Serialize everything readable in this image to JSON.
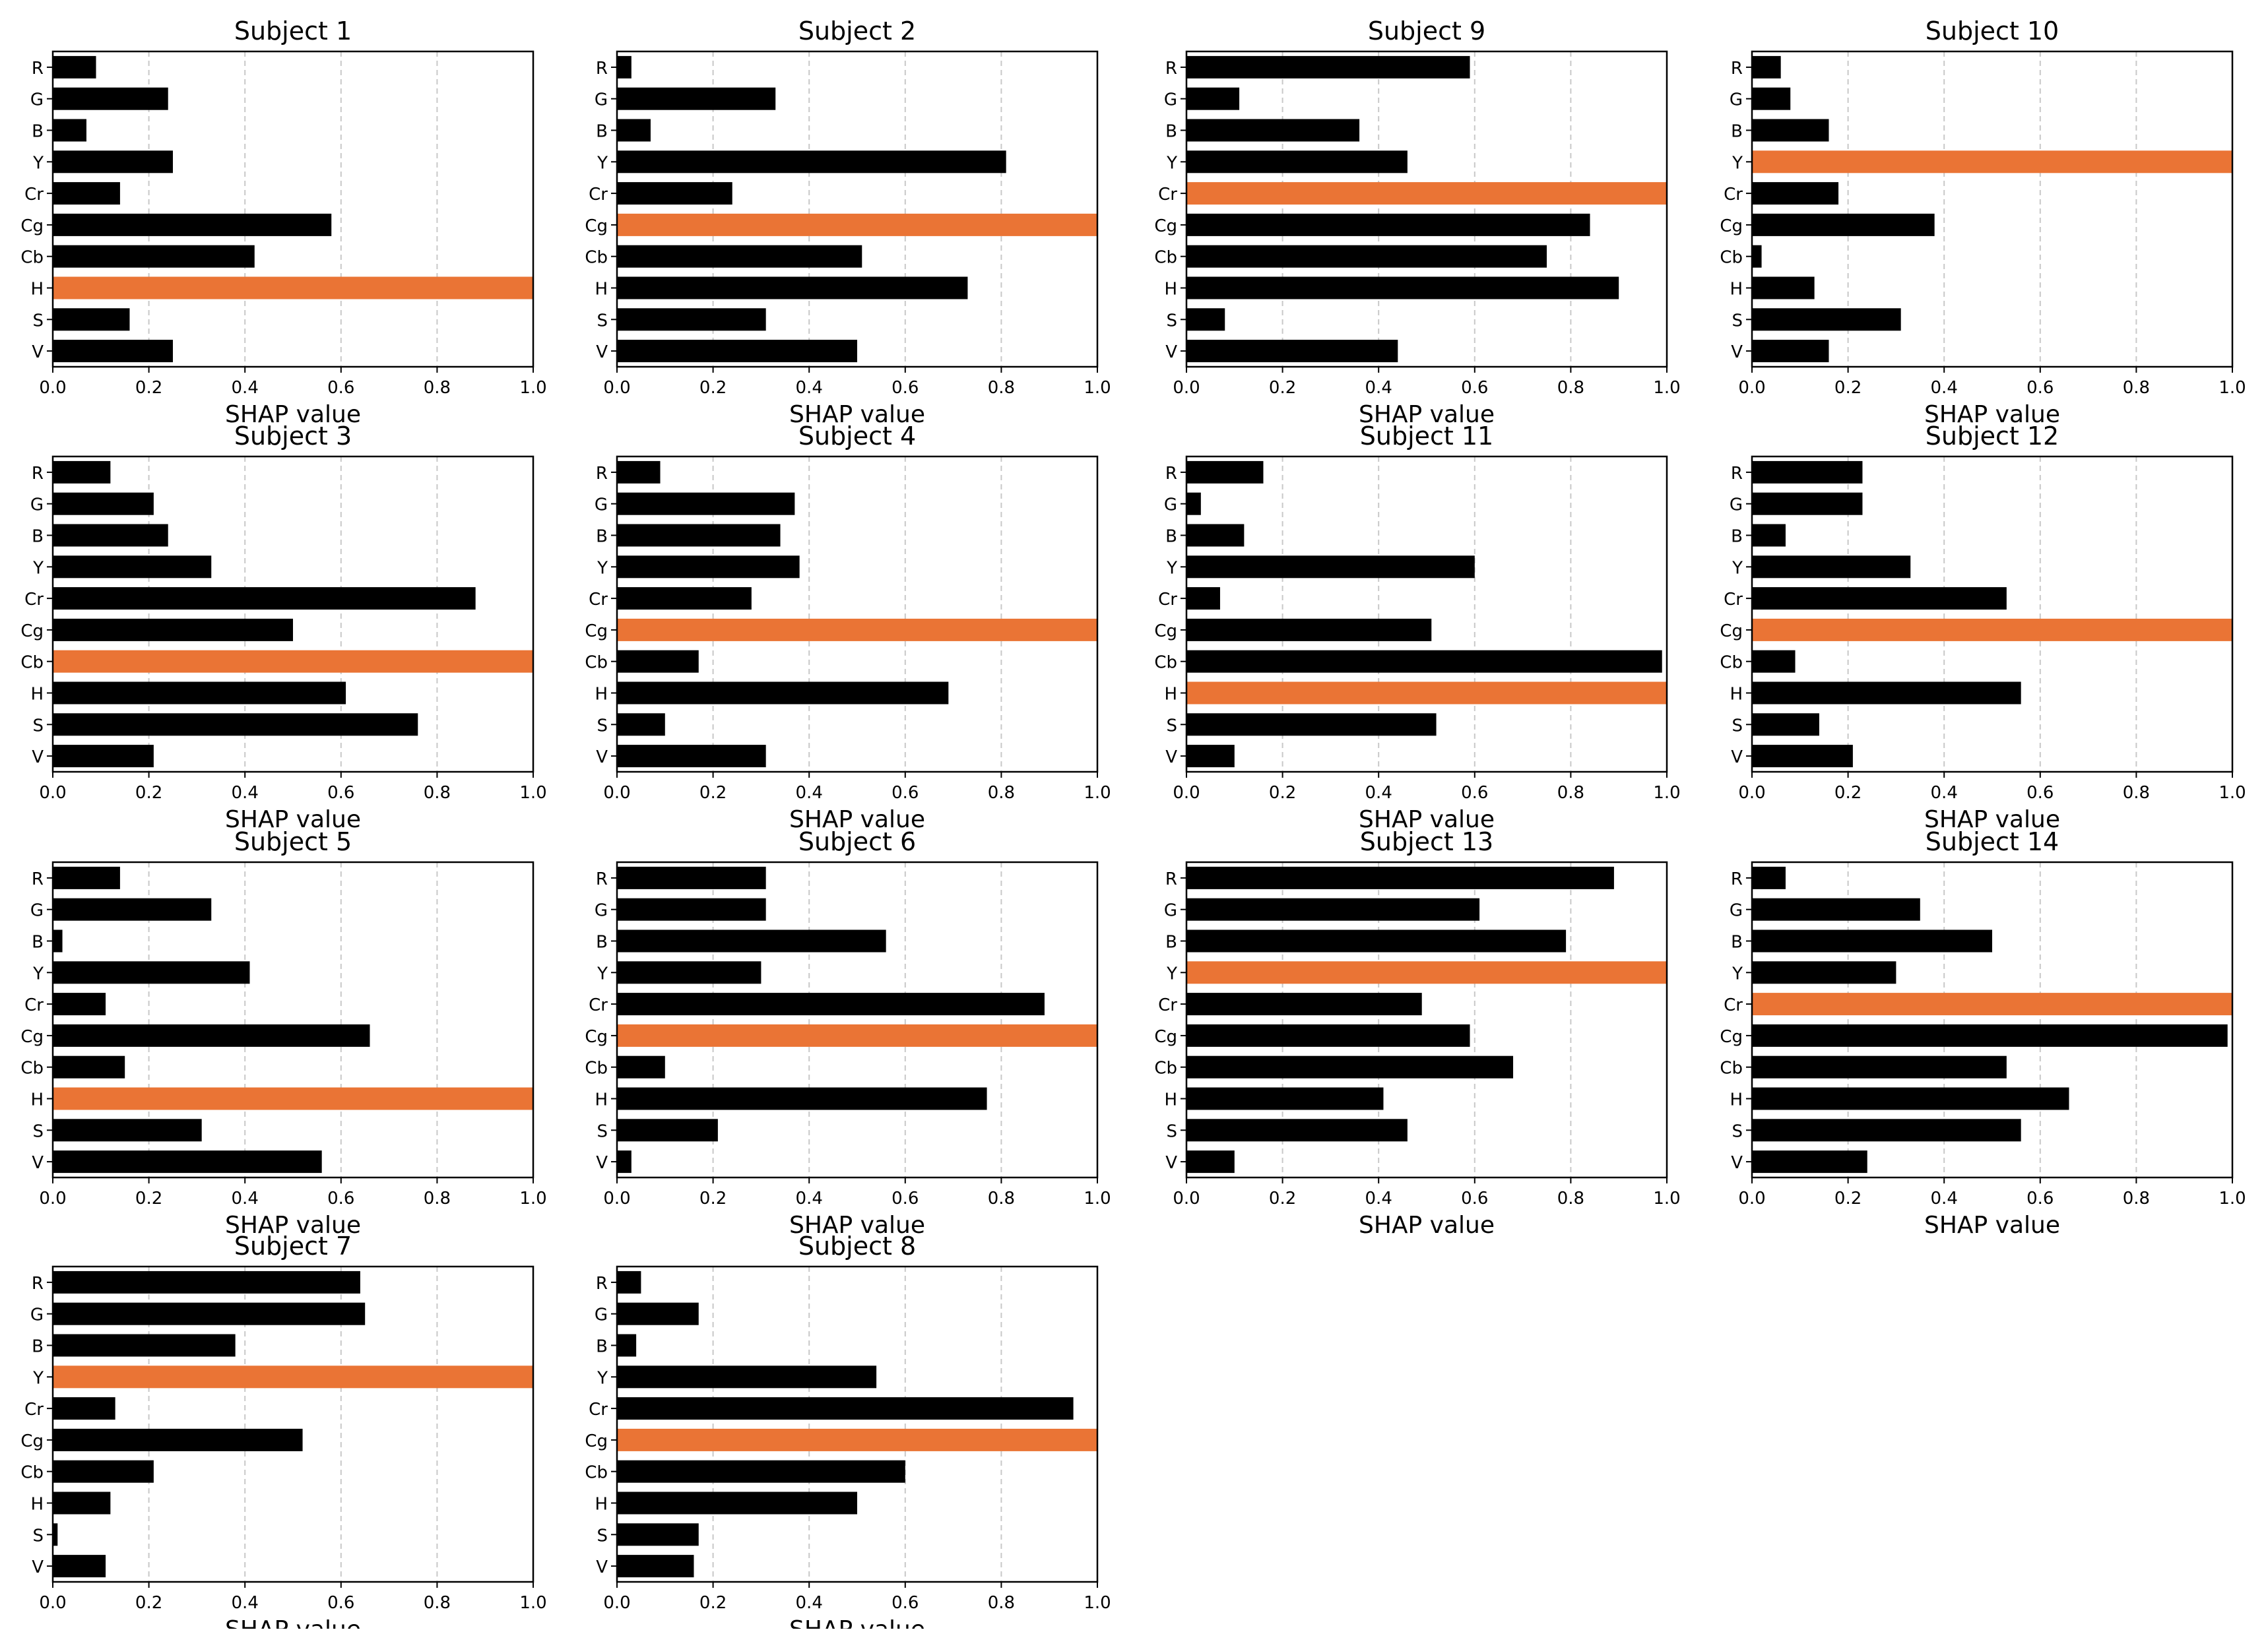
{
  "colors": {
    "bar": "#000000",
    "highlight": "#ea7435",
    "grid": "#c8c8c8",
    "frame": "#000000"
  },
  "chart_data": [
    {
      "type": "bar",
      "orientation": "horizontal",
      "title": "Subject 1",
      "xlabel": "SHAP value",
      "categories": [
        "R",
        "G",
        "B",
        "Y",
        "Cr",
        "Cg",
        "Cb",
        "H",
        "S",
        "V"
      ],
      "values": [
        0.09,
        0.24,
        0.07,
        0.25,
        0.14,
        0.58,
        0.42,
        1.0,
        0.16,
        0.25
      ],
      "highlight": "H",
      "xlim": [
        0,
        1.0
      ],
      "xticks": [
        "0.0",
        "0.2",
        "0.4",
        "0.6",
        "0.8",
        "1.0"
      ],
      "grid": true
    },
    {
      "type": "bar",
      "orientation": "horizontal",
      "title": "Subject 2",
      "xlabel": "SHAP value",
      "categories": [
        "R",
        "G",
        "B",
        "Y",
        "Cr",
        "Cg",
        "Cb",
        "H",
        "S",
        "V"
      ],
      "values": [
        0.03,
        0.33,
        0.07,
        0.81,
        0.24,
        1.0,
        0.51,
        0.73,
        0.31,
        0.5
      ],
      "highlight": "Cg",
      "xlim": [
        0,
        1.0
      ],
      "xticks": [
        "0.0",
        "0.2",
        "0.4",
        "0.6",
        "0.8",
        "1.0"
      ],
      "grid": true
    },
    {
      "type": "bar",
      "orientation": "horizontal",
      "title": "Subject 9",
      "xlabel": "SHAP value",
      "categories": [
        "R",
        "G",
        "B",
        "Y",
        "Cr",
        "Cg",
        "Cb",
        "H",
        "S",
        "V"
      ],
      "values": [
        0.59,
        0.11,
        0.36,
        0.46,
        1.0,
        0.84,
        0.75,
        0.9,
        0.08,
        0.44
      ],
      "highlight": "Cr",
      "xlim": [
        0,
        1.0
      ],
      "xticks": [
        "0.0",
        "0.2",
        "0.4",
        "0.6",
        "0.8",
        "1.0"
      ],
      "grid": true
    },
    {
      "type": "bar",
      "orientation": "horizontal",
      "title": "Subject 10",
      "xlabel": "SHAP value",
      "categories": [
        "R",
        "G",
        "B",
        "Y",
        "Cr",
        "Cg",
        "Cb",
        "H",
        "S",
        "V"
      ],
      "values": [
        0.06,
        0.08,
        0.16,
        1.0,
        0.18,
        0.38,
        0.02,
        0.13,
        0.31,
        0.16
      ],
      "highlight": "Y",
      "xlim": [
        0,
        1.0
      ],
      "xticks": [
        "0.0",
        "0.2",
        "0.4",
        "0.6",
        "0.8",
        "1.0"
      ],
      "grid": true
    },
    {
      "type": "bar",
      "orientation": "horizontal",
      "title": "Subject 3",
      "xlabel": "SHAP value",
      "categories": [
        "R",
        "G",
        "B",
        "Y",
        "Cr",
        "Cg",
        "Cb",
        "H",
        "S",
        "V"
      ],
      "values": [
        0.12,
        0.21,
        0.24,
        0.33,
        0.88,
        0.5,
        1.0,
        0.61,
        0.76,
        0.21
      ],
      "highlight": "Cb",
      "xlim": [
        0,
        1.0
      ],
      "xticks": [
        "0.0",
        "0.2",
        "0.4",
        "0.6",
        "0.8",
        "1.0"
      ],
      "grid": true
    },
    {
      "type": "bar",
      "orientation": "horizontal",
      "title": "Subject 4",
      "xlabel": "SHAP value",
      "categories": [
        "R",
        "G",
        "B",
        "Y",
        "Cr",
        "Cg",
        "Cb",
        "H",
        "S",
        "V"
      ],
      "values": [
        0.09,
        0.37,
        0.34,
        0.38,
        0.28,
        1.0,
        0.17,
        0.69,
        0.1,
        0.31
      ],
      "highlight": "Cg",
      "xlim": [
        0,
        1.0
      ],
      "xticks": [
        "0.0",
        "0.2",
        "0.4",
        "0.6",
        "0.8",
        "1.0"
      ],
      "grid": true
    },
    {
      "type": "bar",
      "orientation": "horizontal",
      "title": "Subject 11",
      "xlabel": "SHAP value",
      "categories": [
        "R",
        "G",
        "B",
        "Y",
        "Cr",
        "Cg",
        "Cb",
        "H",
        "S",
        "V"
      ],
      "values": [
        0.16,
        0.03,
        0.12,
        0.6,
        0.07,
        0.51,
        0.99,
        1.0,
        0.52,
        0.1
      ],
      "highlight": "H",
      "xlim": [
        0,
        1.0
      ],
      "xticks": [
        "0.0",
        "0.2",
        "0.4",
        "0.6",
        "0.8",
        "1.0"
      ],
      "grid": true
    },
    {
      "type": "bar",
      "orientation": "horizontal",
      "title": "Subject 12",
      "xlabel": "SHAP value",
      "categories": [
        "R",
        "G",
        "B",
        "Y",
        "Cr",
        "Cg",
        "Cb",
        "H",
        "S",
        "V"
      ],
      "values": [
        0.23,
        0.23,
        0.07,
        0.33,
        0.53,
        1.0,
        0.09,
        0.56,
        0.14,
        0.21
      ],
      "highlight": "Cg",
      "xlim": [
        0,
        1.0
      ],
      "xticks": [
        "0.0",
        "0.2",
        "0.4",
        "0.6",
        "0.8",
        "1.0"
      ],
      "grid": true
    },
    {
      "type": "bar",
      "orientation": "horizontal",
      "title": "Subject 5",
      "xlabel": "SHAP value",
      "categories": [
        "R",
        "G",
        "B",
        "Y",
        "Cr",
        "Cg",
        "Cb",
        "H",
        "S",
        "V"
      ],
      "values": [
        0.14,
        0.33,
        0.02,
        0.41,
        0.11,
        0.66,
        0.15,
        1.0,
        0.31,
        0.56
      ],
      "highlight": "H",
      "xlim": [
        0,
        1.0
      ],
      "xticks": [
        "0.0",
        "0.2",
        "0.4",
        "0.6",
        "0.8",
        "1.0"
      ],
      "grid": true
    },
    {
      "type": "bar",
      "orientation": "horizontal",
      "title": "Subject 6",
      "xlabel": "SHAP value",
      "categories": [
        "R",
        "G",
        "B",
        "Y",
        "Cr",
        "Cg",
        "Cb",
        "H",
        "S",
        "V"
      ],
      "values": [
        0.31,
        0.31,
        0.56,
        0.3,
        0.89,
        1.0,
        0.1,
        0.77,
        0.21,
        0.03
      ],
      "highlight": "Cg",
      "xlim": [
        0,
        1.0
      ],
      "xticks": [
        "0.0",
        "0.2",
        "0.4",
        "0.6",
        "0.8",
        "1.0"
      ],
      "grid": true
    },
    {
      "type": "bar",
      "orientation": "horizontal",
      "title": "Subject 13",
      "xlabel": "SHAP value",
      "categories": [
        "R",
        "G",
        "B",
        "Y",
        "Cr",
        "Cg",
        "Cb",
        "H",
        "S",
        "V"
      ],
      "values": [
        0.89,
        0.61,
        0.79,
        1.0,
        0.49,
        0.59,
        0.68,
        0.41,
        0.46,
        0.1
      ],
      "highlight": "Y",
      "xlim": [
        0,
        1.0
      ],
      "xticks": [
        "0.0",
        "0.2",
        "0.4",
        "0.6",
        "0.8",
        "1.0"
      ],
      "grid": true
    },
    {
      "type": "bar",
      "orientation": "horizontal",
      "title": "Subject 14",
      "xlabel": "SHAP value",
      "categories": [
        "R",
        "G",
        "B",
        "Y",
        "Cr",
        "Cg",
        "Cb",
        "H",
        "S",
        "V"
      ],
      "values": [
        0.07,
        0.35,
        0.5,
        0.3,
        1.0,
        0.99,
        0.53,
        0.66,
        0.56,
        0.24
      ],
      "highlight": "Cr",
      "xlim": [
        0,
        1.0
      ],
      "xticks": [
        "0.0",
        "0.2",
        "0.4",
        "0.6",
        "0.8",
        "1.0"
      ],
      "grid": true
    },
    {
      "type": "bar",
      "orientation": "horizontal",
      "title": "Subject 7",
      "xlabel": "SHAP value",
      "categories": [
        "R",
        "G",
        "B",
        "Y",
        "Cr",
        "Cg",
        "Cb",
        "H",
        "S",
        "V"
      ],
      "values": [
        0.64,
        0.65,
        0.38,
        1.0,
        0.13,
        0.52,
        0.21,
        0.12,
        0.01,
        0.11
      ],
      "highlight": "Y",
      "xlim": [
        0,
        1.0
      ],
      "xticks": [
        "0.0",
        "0.2",
        "0.4",
        "0.6",
        "0.8",
        "1.0"
      ],
      "grid": true
    },
    {
      "type": "bar",
      "orientation": "horizontal",
      "title": "Subject 8",
      "xlabel": "SHAP value",
      "categories": [
        "R",
        "G",
        "B",
        "Y",
        "Cr",
        "Cg",
        "Cb",
        "H",
        "S",
        "V"
      ],
      "values": [
        0.05,
        0.17,
        0.04,
        0.54,
        0.95,
        1.0,
        0.6,
        0.5,
        0.17,
        0.16
      ],
      "highlight": "Cg",
      "xlim": [
        0,
        1.0
      ],
      "xticks": [
        "0.0",
        "0.2",
        "0.4",
        "0.6",
        "0.8",
        "1.0"
      ],
      "grid": true
    }
  ]
}
